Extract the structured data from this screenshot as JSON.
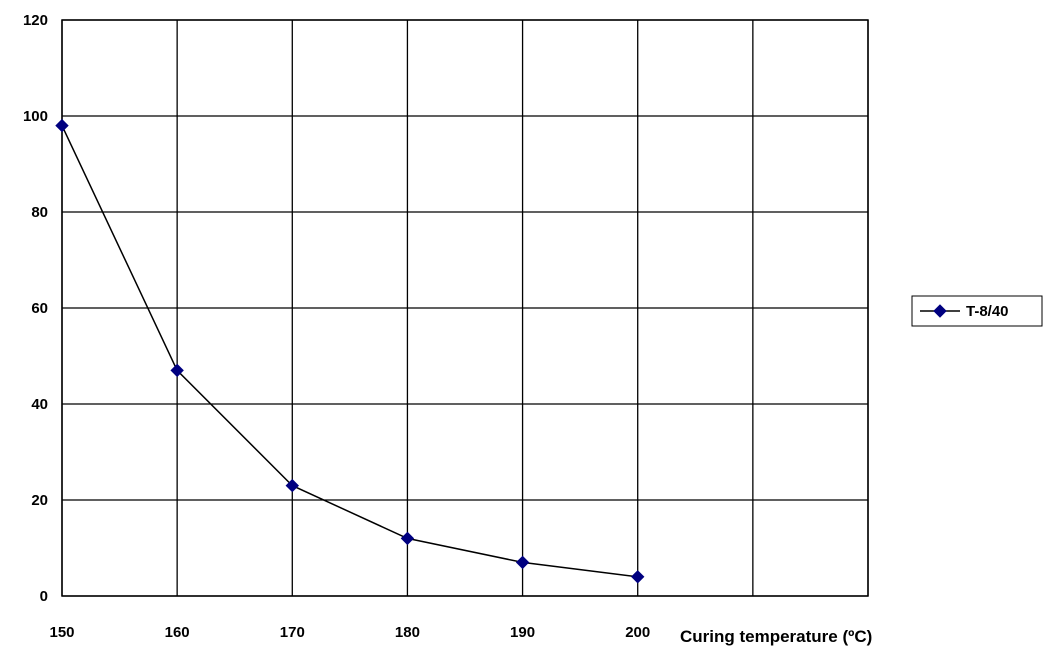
{
  "chart_data": {
    "type": "line",
    "title": "",
    "xlabel": "Curing temperature (ºC)",
    "ylabel": "",
    "x_ticks": [
      "150",
      "160",
      "170",
      "180",
      "190",
      "200"
    ],
    "y_ticks": [
      "0",
      "20",
      "40",
      "60",
      "80",
      "100",
      "120"
    ],
    "xlim": [
      150,
      220
    ],
    "ylim": [
      0,
      120
    ],
    "grid": true,
    "legend_position": "right",
    "series": [
      {
        "name": "T-8/40",
        "color": "#000080",
        "marker": "diamond",
        "x": [
          150,
          160,
          170,
          180,
          190,
          200
        ],
        "values": [
          98,
          47,
          23,
          12,
          7,
          4
        ]
      }
    ]
  }
}
